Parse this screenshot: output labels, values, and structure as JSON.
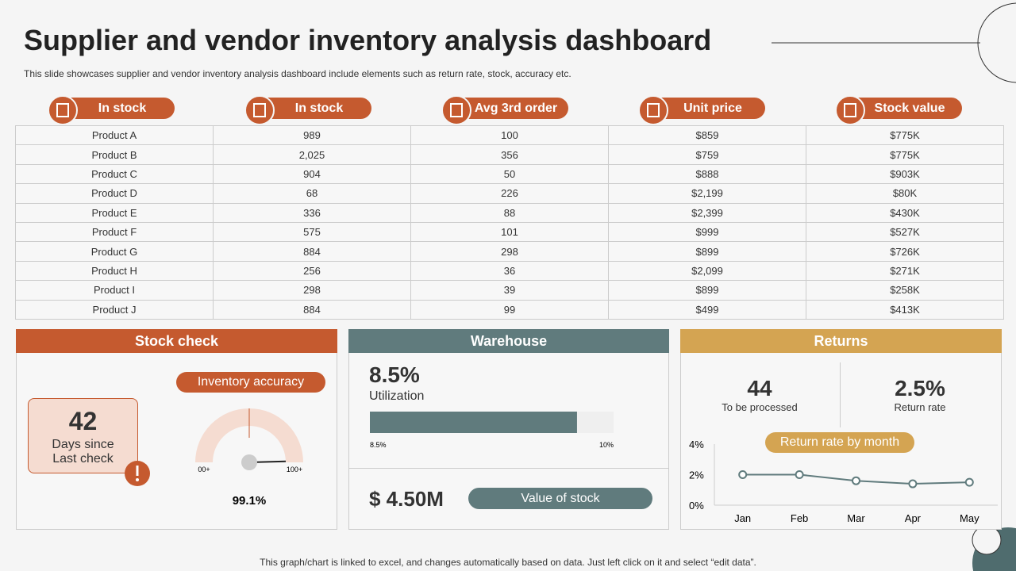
{
  "header": {
    "title": "Supplier and vendor inventory analysis dashboard",
    "subtitle": "This slide showcases supplier and vendor inventory analysis dashboard include elements such as return rate, stock, accuracy etc."
  },
  "table": {
    "columns": [
      "In stock",
      "In stock",
      "Avg 3rd order",
      "Unit price",
      "Stock value"
    ],
    "rows": [
      [
        "Product A",
        "989",
        "100",
        "$859",
        "$775K"
      ],
      [
        "Product B",
        "2,025",
        "356",
        "$759",
        "$775K"
      ],
      [
        "Product C",
        "904",
        "50",
        "$888",
        "$903K"
      ],
      [
        "Product D",
        "68",
        "226",
        "$2,199",
        "$80K"
      ],
      [
        "Product E",
        "336",
        "88",
        "$2,399",
        "$430K"
      ],
      [
        "Product F",
        "575",
        "101",
        "$999",
        "$527K"
      ],
      [
        "Product G",
        "884",
        "298",
        "$899",
        "$726K"
      ],
      [
        "Product H",
        "256",
        "36",
        "$2,099",
        "$271K"
      ],
      [
        "Product I",
        "298",
        "39",
        "$899",
        "$258K"
      ],
      [
        "Product J",
        "884",
        "99",
        "$499",
        "$413K"
      ]
    ]
  },
  "stock_check": {
    "title": "Stock check",
    "days": 42,
    "days_label": "Days since Last check",
    "gauge": {
      "label": "Inventory accuracy",
      "value": 99.1,
      "value_label": "99.1%",
      "ticks": [
        {
          "value": 0,
          "label": "00+"
        },
        {
          "value": 100,
          "label": "100+"
        }
      ]
    }
  },
  "warehouse": {
    "title": "Warehouse",
    "utilization": 8.5,
    "utilization_label": "8.5%",
    "utilization_text": "Utilization",
    "xlim": [
      0,
      10
    ],
    "bar_ticks": [
      {
        "value": 8.5,
        "label": "8.5%"
      },
      {
        "value": 10,
        "label": "10%"
      }
    ],
    "stock_value": 4500000,
    "stock_value_label": "$ 4.50M",
    "stock_value_text": "Value of stock"
  },
  "returns": {
    "title": "Returns",
    "to_process": 44,
    "to_process_label": "To be processed",
    "return_rate": 2.5,
    "return_rate_label": "2.5%",
    "return_rate_text": "Return rate"
  },
  "chart_data": {
    "type": "line",
    "title": "Return rate by month",
    "categories": [
      "Jan",
      "Feb",
      "Mar",
      "Apr",
      "May"
    ],
    "values": [
      2,
      2,
      1.6,
      1.4,
      1.5
    ],
    "color": "#607b7d",
    "ylim": [
      0,
      4
    ],
    "yticks": [
      {
        "value": 0,
        "label": "0%"
      },
      {
        "value": 2,
        "label": "2%"
      },
      {
        "value": 4,
        "label": "4%"
      }
    ]
  },
  "footer": "This graph/chart is linked to excel, and changes automatically based on data. Just left click on it and select “edit data”."
}
